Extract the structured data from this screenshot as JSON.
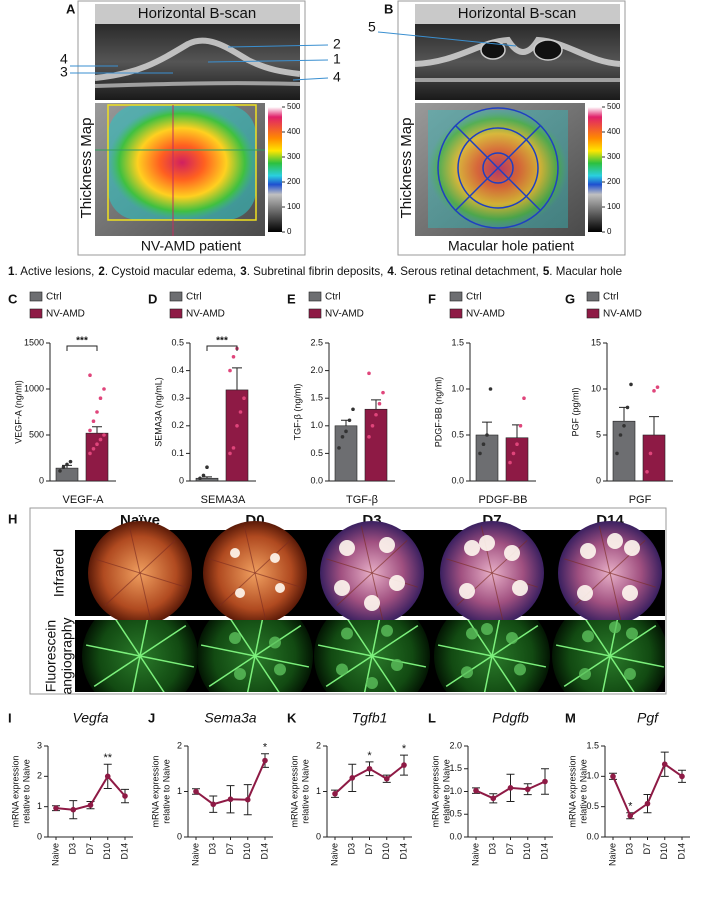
{
  "top_panels": [
    {
      "letter": "A",
      "title": "Horizontal B-scan",
      "side_label": "Thickness Map",
      "caption": "NV-AMD patient",
      "colorbar_ticks": [
        500,
        400,
        300,
        200,
        100,
        0
      ],
      "callouts_left": [
        "4",
        "3"
      ],
      "callouts_right": [
        "2",
        "1",
        "4"
      ]
    },
    {
      "letter": "B",
      "title": "Horizontal B-scan",
      "side_label": "Thickness Map",
      "caption": "Macular hole patient",
      "colorbar_ticks": [
        500,
        400,
        300,
        200,
        100,
        0
      ],
      "callouts_left": [
        "5"
      ]
    }
  ],
  "legend": [
    {
      "num": "1",
      "text": ". Active lesions,"
    },
    {
      "num": "2",
      "text": ". Cystoid macular edema,"
    },
    {
      "num": "3",
      "text": ". Subretinal fibrin deposits,"
    },
    {
      "num": "4",
      "text": ". Serous retinal detachment,"
    },
    {
      "num": "5",
      "text": ". Macular hole"
    }
  ],
  "imaging": {
    "letter": "H",
    "columns": [
      "Naïve",
      "D0",
      "D3",
      "D7",
      "D14"
    ],
    "rows": [
      [
        "Infrared"
      ],
      [
        "Fluorescein",
        "angiography"
      ]
    ]
  },
  "chart_data": [
    {
      "type": "bar",
      "letter": "C",
      "ylabel": "VEGF-A (ng/ml)",
      "xlabel": "VEGF-A",
      "ylim": [
        0,
        1500
      ],
      "yticks": [
        0,
        500,
        1000,
        1500
      ],
      "significance": "***",
      "series": [
        {
          "name": "Ctrl",
          "color": "#6d6e71",
          "values": [
            140
          ],
          "errors": [
            30
          ],
          "points": [
            110,
            150,
            180,
            210
          ]
        },
        {
          "name": "NV-AMD",
          "color": "#8e1a45",
          "values": [
            520
          ],
          "errors": [
            70
          ],
          "points": [
            300,
            350,
            400,
            450,
            500,
            550,
            650,
            750,
            900,
            1000,
            1150
          ]
        }
      ]
    },
    {
      "type": "bar",
      "letter": "D",
      "ylabel": "SEMA3A (ng/mL)",
      "xlabel": "SEMA3A",
      "ylim": [
        0,
        0.5
      ],
      "yticks": [
        0,
        0.1,
        0.2,
        0.3,
        0.4,
        0.5
      ],
      "significance": "***",
      "series": [
        {
          "name": "Ctrl",
          "color": "#6d6e71",
          "values": [
            0.01
          ],
          "errors": [
            0.005
          ],
          "points": [
            0.01,
            0.02,
            0.05
          ]
        },
        {
          "name": "NV-AMD",
          "color": "#8e1a45",
          "values": [
            0.33
          ],
          "errors": [
            0.08
          ],
          "points": [
            0.1,
            0.12,
            0.2,
            0.25,
            0.3,
            0.4,
            0.45,
            0.48
          ]
        }
      ]
    },
    {
      "type": "bar",
      "letter": "E",
      "ylabel": "TGF-β (ng/ml)",
      "xlabel": "TGF-β",
      "ylim": [
        0,
        2.5
      ],
      "yticks": [
        {
          "value": 0,
          "label": "0.0"
        },
        0.5,
        {
          "value": 1,
          "label": "1.0"
        },
        1.5,
        {
          "value": 2,
          "label": "2.0"
        },
        2.5
      ],
      "series": [
        {
          "name": "Ctrl",
          "color": "#6d6e71",
          "values": [
            1.0
          ],
          "errors": [
            0.1
          ],
          "points": [
            0.6,
            0.8,
            0.9,
            1.1,
            1.3
          ]
        },
        {
          "name": "NV-AMD",
          "color": "#8e1a45",
          "values": [
            1.3
          ],
          "errors": [
            0.17
          ],
          "points": [
            0.8,
            1.0,
            1.2,
            1.4,
            1.6,
            1.95
          ]
        }
      ]
    },
    {
      "type": "bar",
      "letter": "F",
      "ylabel": "PDGF-BB (ng/ml)",
      "xlabel": "PDGF-BB",
      "ylim": [
        0,
        1.5
      ],
      "yticks": [
        {
          "value": 0,
          "label": "0.0"
        },
        0.5,
        {
          "value": 1,
          "label": "1.0"
        },
        1.5
      ],
      "series": [
        {
          "name": "Ctrl",
          "color": "#6d6e71",
          "values": [
            0.5
          ],
          "errors": [
            0.14
          ],
          "points": [
            0.3,
            0.4,
            0.5,
            1.0
          ]
        },
        {
          "name": "NV-AMD",
          "color": "#8e1a45",
          "values": [
            0.47
          ],
          "errors": [
            0.14
          ],
          "points": [
            0.2,
            0.3,
            0.4,
            0.6,
            0.9
          ]
        }
      ]
    },
    {
      "type": "bar",
      "letter": "G",
      "ylabel": "PGF (pg/ml)",
      "xlabel": "PGF",
      "ylim": [
        0,
        15
      ],
      "yticks": [
        0,
        5,
        10,
        15
      ],
      "series": [
        {
          "name": "Ctrl",
          "color": "#6d6e71",
          "values": [
            6.5
          ],
          "errors": [
            1.5
          ],
          "points": [
            3,
            5,
            6,
            8,
            10.5
          ]
        },
        {
          "name": "NV-AMD",
          "color": "#8e1a45",
          "values": [
            5
          ],
          "errors": [
            2
          ],
          "points": [
            1,
            3,
            9.8,
            10.2
          ]
        }
      ]
    },
    {
      "type": "line",
      "letter": "I",
      "title": "Vegfa",
      "ylabel": [
        "mRNA expression",
        "relative to Naive"
      ],
      "color": "#8e1a45",
      "categories": [
        "Naive",
        "D3",
        "D7",
        "D10",
        "D14"
      ],
      "values": [
        0.95,
        0.9,
        1.05,
        2.0,
        1.35
      ],
      "errors": [
        0.08,
        0.3,
        0.12,
        0.4,
        0.22
      ],
      "significance": [
        null,
        null,
        null,
        "**",
        null
      ],
      "ylim": [
        0,
        3
      ],
      "yticks": [
        0,
        1,
        2,
        3
      ]
    },
    {
      "type": "line",
      "letter": "J",
      "title": "Sema3a",
      "ylabel": [
        "mRNA expression",
        "relative to Naive"
      ],
      "color": "#8e1a45",
      "categories": [
        "Naive",
        "D3",
        "D7",
        "D10",
        "D14"
      ],
      "values": [
        1.0,
        0.72,
        0.83,
        0.82,
        1.68
      ],
      "errors": [
        0.06,
        0.18,
        0.3,
        0.33,
        0.15
      ],
      "significance": [
        null,
        null,
        null,
        null,
        "*"
      ],
      "ylim": [
        0,
        2
      ],
      "yticks": [
        0,
        1,
        2
      ]
    },
    {
      "type": "line",
      "letter": "K",
      "title": "Tgfb1",
      "ylabel": [
        "mRNA expression",
        "relative to Naive"
      ],
      "color": "#8e1a45",
      "categories": [
        "Naive",
        "D3",
        "D7",
        "D10",
        "D14"
      ],
      "values": [
        0.95,
        1.3,
        1.5,
        1.28,
        1.58
      ],
      "errors": [
        0.08,
        0.3,
        0.15,
        0.08,
        0.22
      ],
      "significance": [
        null,
        null,
        "*",
        null,
        "*"
      ],
      "ylim": [
        0,
        2
      ],
      "yticks": [
        0,
        1,
        2
      ]
    },
    {
      "type": "line",
      "letter": "L",
      "title": "Pdgfb",
      "ylabel": [
        "mRNA expression",
        "relative to Naive"
      ],
      "color": "#8e1a45",
      "categories": [
        "Naive",
        "D3",
        "D7",
        "D10",
        "D14"
      ],
      "values": [
        1.02,
        0.85,
        1.08,
        1.05,
        1.22
      ],
      "errors": [
        0.06,
        0.1,
        0.3,
        0.12,
        0.28
      ],
      "ylim": [
        0,
        2
      ],
      "yticks": [
        {
          "value": 0,
          "label": "0.0"
        },
        0.5,
        {
          "value": 1,
          "label": "1.0"
        },
        1.5,
        {
          "value": 2,
          "label": "2.0"
        }
      ]
    },
    {
      "type": "line",
      "letter": "M",
      "title": "Pgf",
      "ylabel": [
        "mRNA expression",
        "relative to Naive"
      ],
      "color": "#8e1a45",
      "categories": [
        "Naive",
        "D3",
        "D7",
        "D10",
        "D14"
      ],
      "values": [
        1.0,
        0.35,
        0.55,
        1.2,
        1.0
      ],
      "errors": [
        0.05,
        0.05,
        0.15,
        0.2,
        0.1
      ],
      "significance": [
        null,
        "*",
        null,
        null,
        null
      ],
      "ylim": [
        0,
        1.5
      ],
      "yticks": [
        {
          "value": 0,
          "label": "0.0"
        },
        0.5,
        {
          "value": 1,
          "label": "1.0"
        },
        1.5
      ]
    }
  ]
}
